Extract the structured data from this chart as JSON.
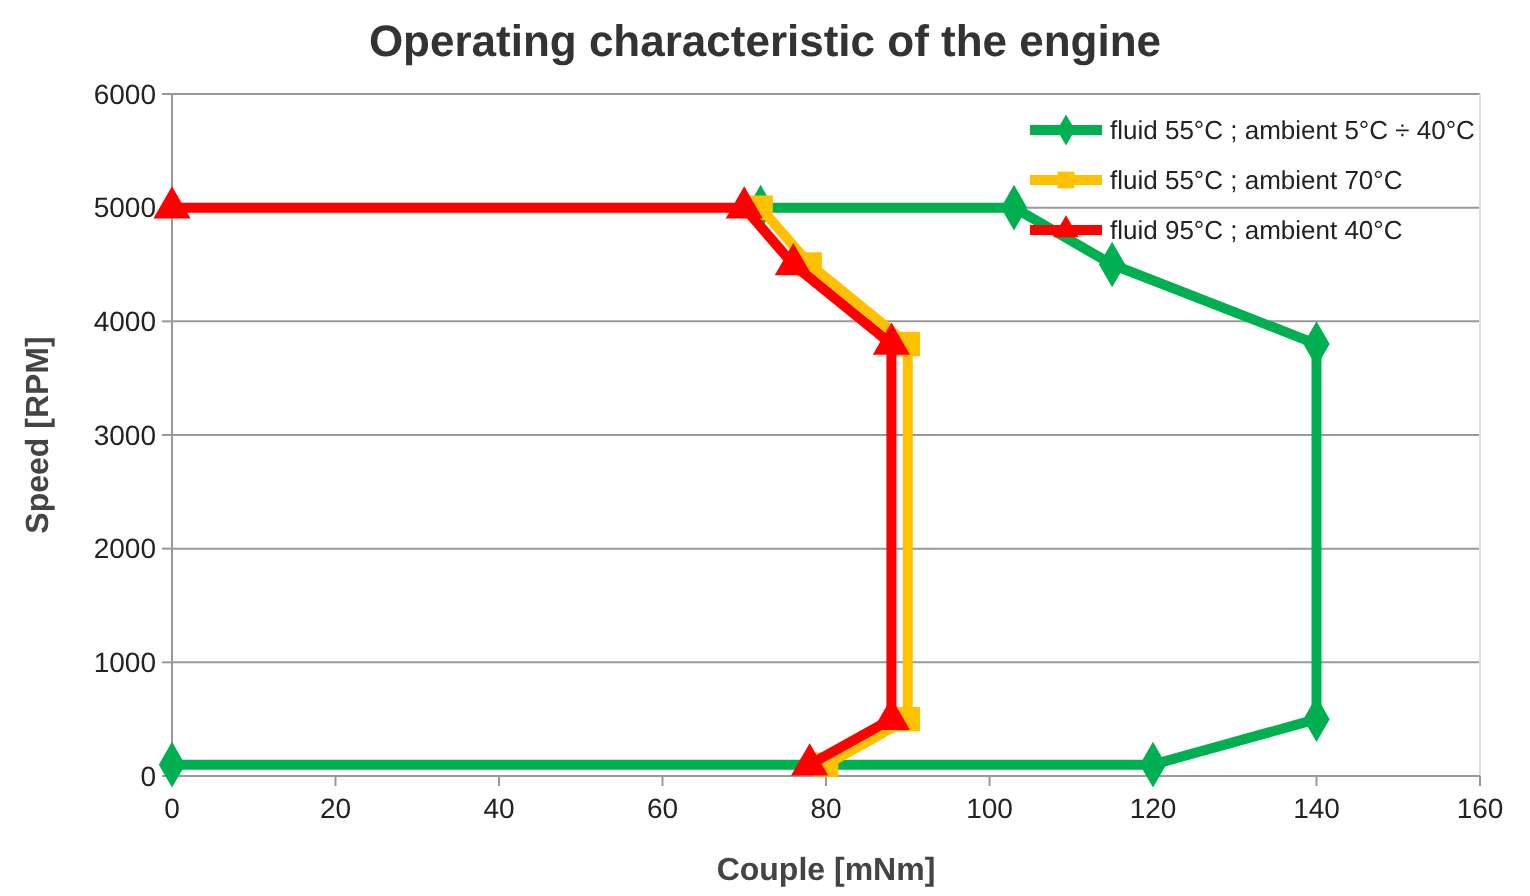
{
  "chart_data": {
    "type": "line",
    "title": "Operating characteristic of the engine",
    "xlabel": "Couple [mNm]",
    "ylabel": "Speed [RPM]",
    "xlim": [
      0,
      160
    ],
    "xticks": [
      0,
      20,
      40,
      60,
      80,
      100,
      120,
      140,
      160
    ],
    "ylim": [
      0,
      6000
    ],
    "yticks": [
      0,
      1000,
      2000,
      3000,
      4000,
      5000,
      6000
    ],
    "grid": "y",
    "legend": "top right",
    "series": [
      {
        "name": "fluid 55°C ; ambient 5°C ÷ 40°C",
        "color": "#00b050",
        "marker": "diamond",
        "x": [
          0,
          120,
          140,
          140,
          115,
          103,
          72
        ],
        "values": [
          100,
          100,
          500,
          3800,
          4500,
          5000,
          5000
        ]
      },
      {
        "name": "fluid 55°C ; ambient 70°C",
        "color": "#ffc000",
        "marker": "square",
        "x": [
          72,
          78,
          90,
          90,
          80
        ],
        "values": [
          5000,
          4500,
          3800,
          500,
          100
        ]
      },
      {
        "name": "fluid 95°C ; ambient 40°C",
        "color": "#ff0000",
        "marker": "triangle",
        "x": [
          0,
          70,
          76,
          88,
          88,
          78
        ],
        "values": [
          5000,
          5000,
          4500,
          3800,
          500,
          100
        ]
      }
    ]
  }
}
